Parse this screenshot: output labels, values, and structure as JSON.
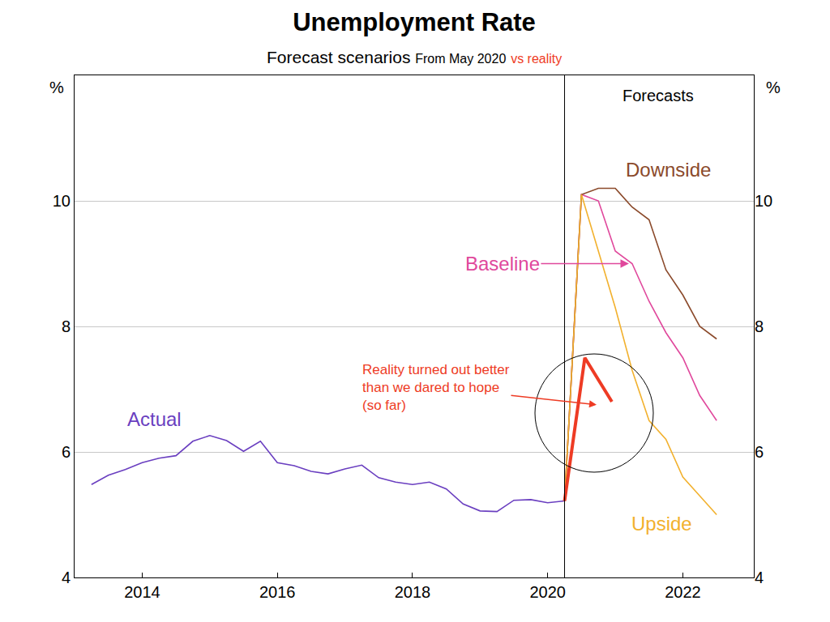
{
  "chart_data": {
    "type": "line",
    "title": "Unemployment Rate",
    "subtitle": {
      "text": "Forecast scenarios",
      "note": "From May 2020",
      "highlight": "vs reality",
      "highlight_color": "#ee3b24"
    },
    "y_label": "%",
    "xlim": [
      2013.0,
      2023.05
    ],
    "xticks": [
      2014,
      2016,
      2018,
      2020,
      2022
    ],
    "ylim": [
      4,
      12
    ],
    "yticks": [
      4,
      6,
      8,
      10
    ],
    "grid": true,
    "series": [
      {
        "name": "Actual",
        "color": "#6a3fc0",
        "line_style": "solid",
        "x": [
          2013.25,
          2013.5,
          2013.75,
          2014,
          2014.25,
          2014.5,
          2014.75,
          2015,
          2015.25,
          2015.5,
          2015.75,
          2016,
          2016.25,
          2016.5,
          2016.75,
          2017,
          2017.25,
          2017.5,
          2017.75,
          2018,
          2018.25,
          2018.5,
          2018.75,
          2019,
          2019.25,
          2019.5,
          2019.75,
          2020,
          2020.25
        ],
        "values": [
          5.48,
          5.63,
          5.72,
          5.83,
          5.9,
          5.94,
          6.17,
          6.26,
          6.18,
          6.01,
          6.17,
          5.83,
          5.78,
          5.69,
          5.65,
          5.73,
          5.79,
          5.59,
          5.52,
          5.48,
          5.52,
          5.41,
          5.17,
          5.06,
          5.05,
          5.23,
          5.24,
          5.19,
          5.22
        ]
      },
      {
        "name": "Baseline",
        "color": "#e0489c",
        "line_style": "solid",
        "x": [
          2020.25,
          2020.5,
          2020.75,
          2021,
          2021.25,
          2021.5,
          2021.75,
          2022,
          2022.25,
          2022.5
        ],
        "values": [
          5.22,
          10.1,
          10.0,
          9.2,
          9.0,
          8.4,
          7.9,
          7.5,
          6.9,
          6.5
        ]
      },
      {
        "name": "Downside",
        "color": "#8b4a2b",
        "line_style": "solid",
        "x": [
          2020.25,
          2020.5,
          2020.75,
          2021,
          2021.25,
          2021.5,
          2021.75,
          2022,
          2022.25,
          2022.5
        ],
        "values": [
          5.22,
          10.1,
          10.2,
          10.2,
          9.9,
          9.7,
          8.9,
          8.5,
          8.0,
          7.8
        ]
      },
      {
        "name": "Upside",
        "color": "#f2b12e",
        "line_style": "solid",
        "x": [
          2020.25,
          2020.5,
          2020.75,
          2021,
          2021.25,
          2021.5,
          2021.75,
          2022,
          2022.25,
          2022.5
        ],
        "values": [
          5.22,
          10.1,
          9.2,
          8.3,
          7.3,
          6.5,
          6.2,
          5.6,
          5.3,
          5.0
        ]
      },
      {
        "color": "#ee3b24",
        "line_style": "thick",
        "x": [
          2020.25,
          2020.55,
          2020.95
        ],
        "values": [
          5.22,
          7.5,
          6.8
        ]
      }
    ],
    "annotations": [
      {
        "text": "Forecasts",
        "color": "#000000"
      },
      {
        "lines": [
          "Reality turned out better",
          "than we dared to hope",
          "(so far)"
        ],
        "color": "#ee3b24"
      }
    ]
  }
}
